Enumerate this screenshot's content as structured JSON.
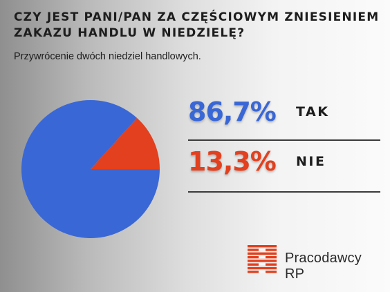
{
  "header": {
    "title": "CZY JEST PANI/PAN ZA CZĘŚCIOWYM ZNIESIENIEM ZAKAZU HANDLU W NIEDZIELĘ?",
    "subtitle": "Przywrócenie dwóch niedziel handlowych."
  },
  "chart_data": {
    "type": "pie",
    "categories": [
      "TAK",
      "NIE"
    ],
    "values": [
      86.7,
      13.3
    ],
    "value_labels": [
      "86,7%",
      "13,3%"
    ],
    "colors": [
      "#3a67d6",
      "#e2401e"
    ],
    "title": "CZY JEST PANI/PAN ZA CZĘŚCIOWYM ZNIESIENIEM ZAKAZU HANDLU W NIEDZIELĘ?",
    "subtitle": "Przywrócenie dwóch niedziel handlowych."
  },
  "legend": {
    "items": [
      {
        "value": "86,7%",
        "label": "TAK",
        "color": "#3a67d6"
      },
      {
        "value": "13,3%",
        "label": "NIE",
        "color": "#e2401e"
      }
    ]
  },
  "brand": {
    "name": "Pracodawcy RP",
    "logo_icon": "pracodawcy-logo-icon",
    "color": "#e2401e"
  }
}
